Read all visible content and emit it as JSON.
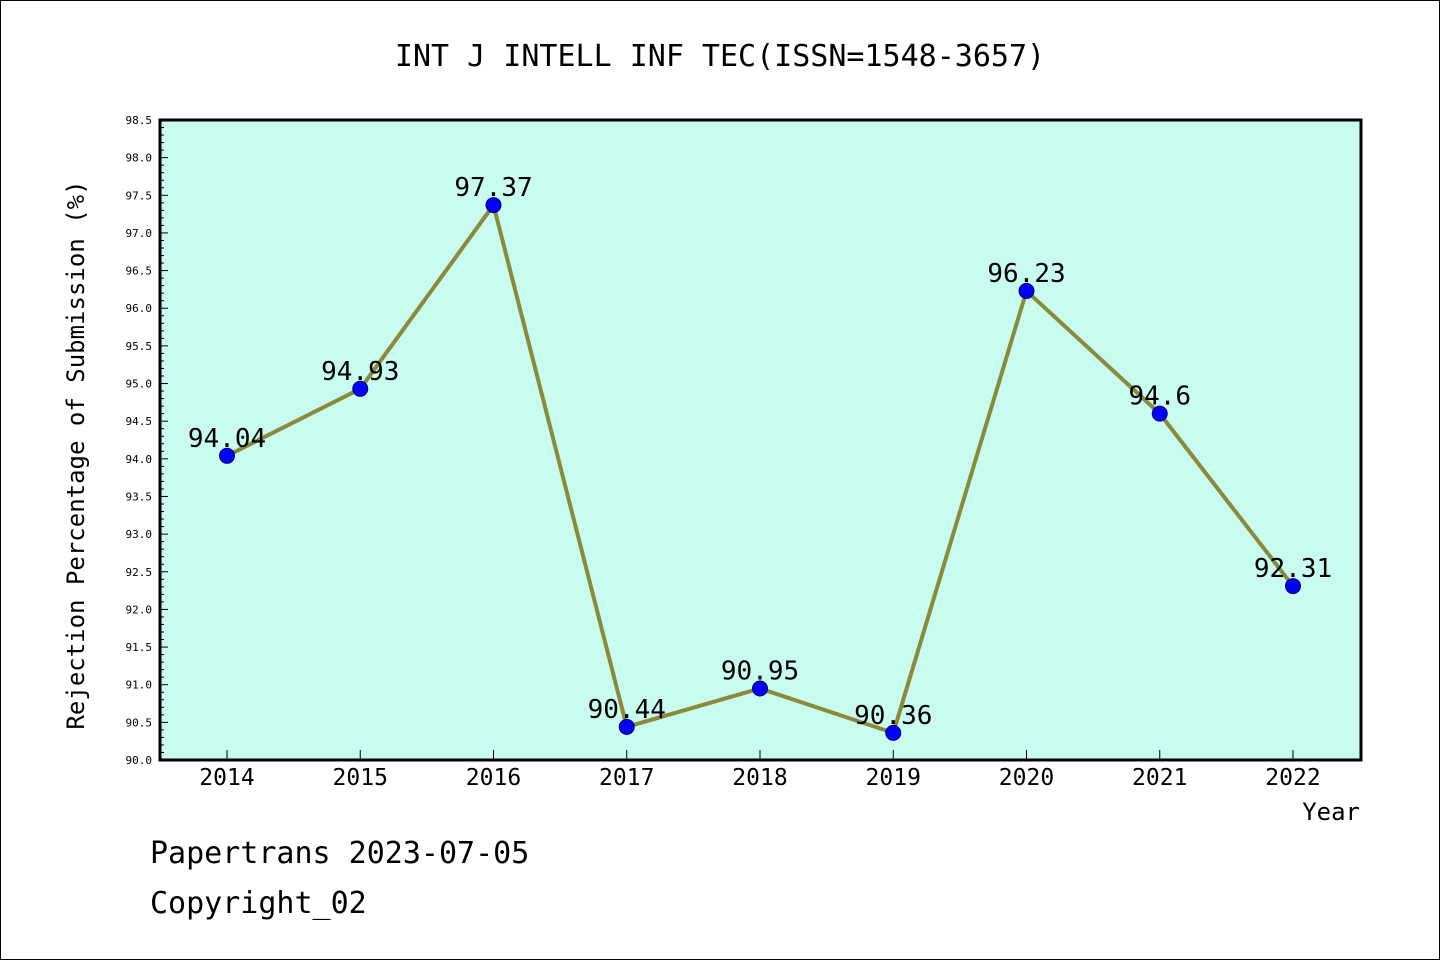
{
  "chart_data": {
    "type": "line",
    "title": "INT J INTELL INF TEC(ISSN=1548-3657)",
    "xlabel": "Year",
    "ylabel": "Rejection Percentage of Submission (%)",
    "categories": [
      "2014",
      "2015",
      "2016",
      "2017",
      "2018",
      "2019",
      "2020",
      "2021",
      "2022"
    ],
    "series": [
      {
        "values": [
          94.04,
          94.93,
          97.37,
          90.44,
          90.95,
          90.36,
          96.23,
          94.6,
          92.31
        ],
        "labels": [
          "94.04",
          "94.93",
          "97.37",
          "90.44",
          "90.95",
          "90.36",
          "96.23",
          "94.6",
          "92.31"
        ],
        "line_color": "#8c8a3a",
        "marker_color": "#0000ff"
      }
    ],
    "ylim": [
      90.0,
      98.5
    ],
    "yticks": [
      "90.0",
      "90.5",
      "91.0",
      "91.5",
      "92.0",
      "92.5",
      "93.0",
      "93.5",
      "94.0",
      "94.5",
      "95.0",
      "95.5",
      "96.0",
      "96.5",
      "97.0",
      "97.5",
      "98.0",
      "98.5"
    ],
    "plot_background": "#c8fcee",
    "grid": false,
    "legend": "none"
  },
  "footer": {
    "line1": "Papertrans 2023-07-05",
    "line2": "Copyright_02"
  }
}
